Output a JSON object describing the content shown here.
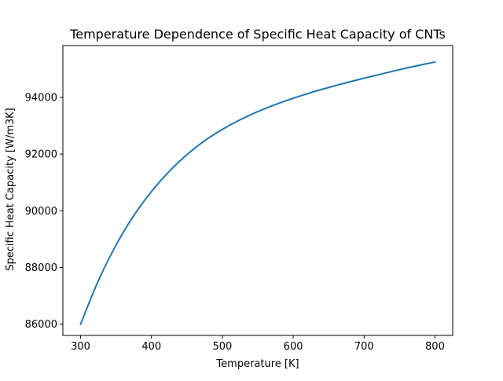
{
  "chart_data": {
    "type": "line",
    "title": "Temperature Dependence of Specific Heat Capacity of CNTs",
    "xlabel": "Temperature [K]",
    "ylabel": "Specific Heat Capacity [W/m3K]",
    "xlim": [
      275,
      825
    ],
    "ylim": [
      85600,
      95830
    ],
    "xticks": [
      300,
      400,
      500,
      600,
      700,
      800
    ],
    "yticks": [
      86000,
      88000,
      90000,
      92000,
      94000
    ],
    "grid": false,
    "series": [
      {
        "color": "#1f77b4",
        "x": [
          300,
          325,
          350,
          375,
          400,
          425,
          450,
          475,
          500,
          525,
          550,
          575,
          600,
          625,
          650,
          675,
          700,
          725,
          750,
          775,
          800
        ],
        "y": [
          86000,
          87530,
          88790,
          89830,
          90680,
          91390,
          91980,
          92470,
          92870,
          93210,
          93500,
          93750,
          93970,
          94170,
          94350,
          94520,
          94680,
          94830,
          94980,
          95120,
          95250
        ]
      }
    ]
  }
}
